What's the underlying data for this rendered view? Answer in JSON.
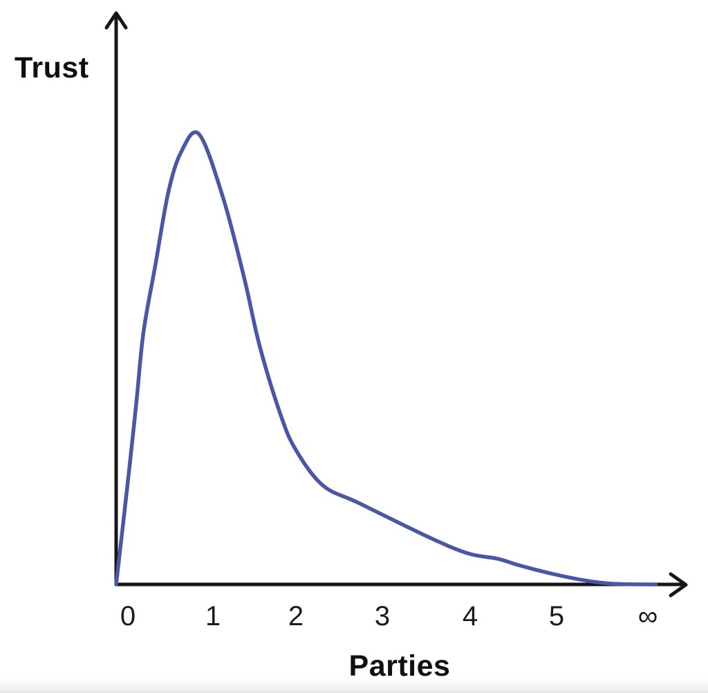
{
  "chart_data": {
    "type": "line",
    "title": "",
    "xlabel": "Parties",
    "ylabel": "Trust",
    "x_tick_labels": [
      "0",
      "1",
      "2",
      "3",
      "4",
      "5",
      "∞"
    ],
    "xlim": [
      0,
      6.3
    ],
    "ylim": [
      0,
      1
    ],
    "grid": false,
    "legend": "none",
    "annotation": "Trust rises steeply to a peak just before 1 party, then decays asymptotically toward zero as the number of parties approaches infinity",
    "series": [
      {
        "name": "trust-curve",
        "color": "#4a57a5",
        "points": [
          [
            0.0,
            0.0
          ],
          [
            0.15,
            0.25
          ],
          [
            0.24,
            0.41
          ],
          [
            0.32,
            0.56
          ],
          [
            0.46,
            0.71
          ],
          [
            0.61,
            0.87
          ],
          [
            0.76,
            0.96
          ],
          [
            0.97,
            1.0
          ],
          [
            1.25,
            0.86
          ],
          [
            1.5,
            0.68
          ],
          [
            1.68,
            0.53
          ],
          [
            1.92,
            0.38
          ],
          [
            2.1,
            0.3
          ],
          [
            2.42,
            0.22
          ],
          [
            2.85,
            0.18
          ],
          [
            3.66,
            0.105
          ],
          [
            4.12,
            0.069
          ],
          [
            4.47,
            0.057
          ],
          [
            4.71,
            0.043
          ],
          [
            5.12,
            0.023
          ],
          [
            5.52,
            0.008
          ],
          [
            5.85,
            0.001
          ],
          [
            6.32,
            0.0
          ]
        ]
      }
    ],
    "colors": {
      "curve": "#4a57a5",
      "axis": "#161616",
      "text": "#101010",
      "background": "#ffffff"
    }
  }
}
